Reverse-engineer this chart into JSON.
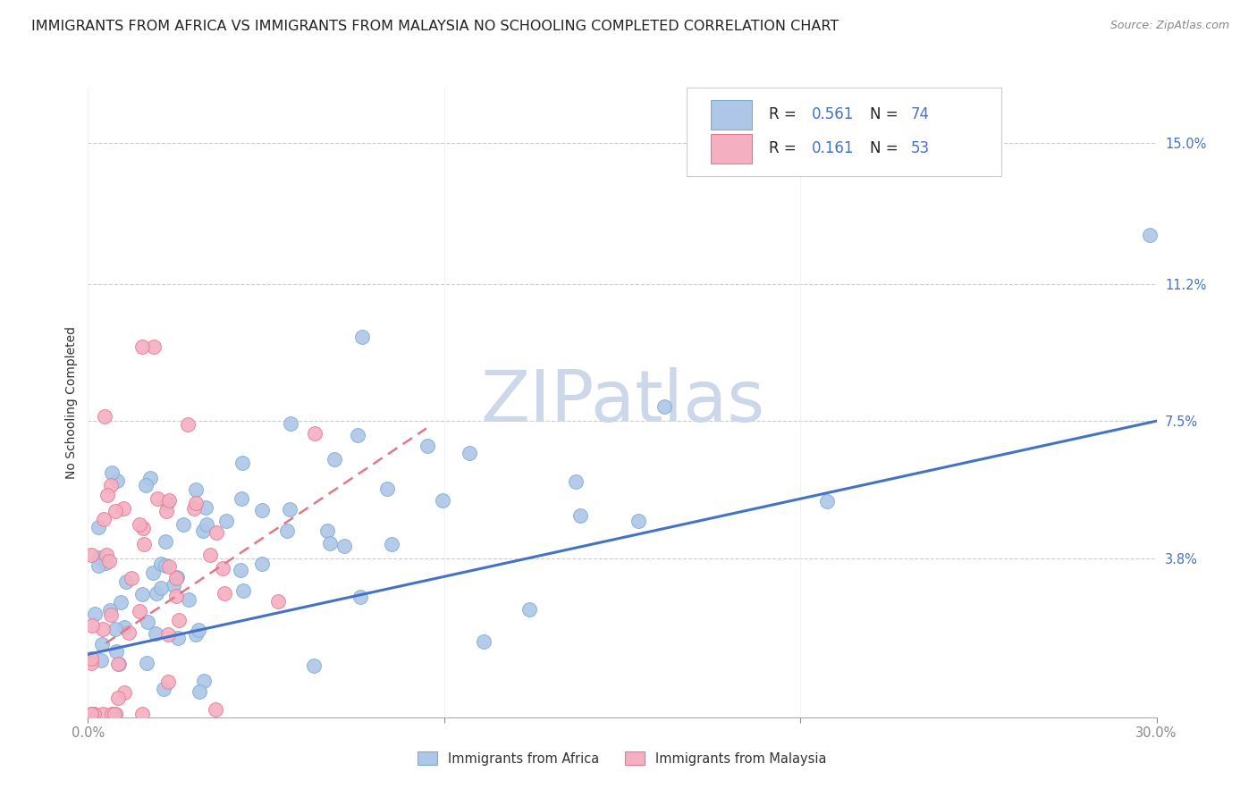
{
  "title": "IMMIGRANTS FROM AFRICA VS IMMIGRANTS FROM MALAYSIA NO SCHOOLING COMPLETED CORRELATION CHART",
  "source": "Source: ZipAtlas.com",
  "ylabel": "No Schooling Completed",
  "y_tick_labels_right": [
    "3.8%",
    "7.5%",
    "11.2%",
    "15.0%"
  ],
  "y_tick_vals": [
    0.038,
    0.075,
    0.112,
    0.15
  ],
  "xlim": [
    0.0,
    0.3
  ],
  "ylim": [
    -0.005,
    0.165
  ],
  "legend_r1_val": "0.561",
  "legend_n1_val": "74",
  "legend_r2_val": "0.161",
  "legend_n2_val": "53",
  "africa_color": "#aec6e8",
  "africa_edge": "#7aafd4",
  "africa_line_color": "#4472c4",
  "malaysia_color": "#f4b0c0",
  "malaysia_edge": "#e87898",
  "malaysia_line_color": "#e07888",
  "watermark": "ZIPatlas",
  "watermark_color": "#ccd8ea",
  "africa_trendline_x0": 0.0,
  "africa_trendline_x1": 0.3,
  "africa_trendline_y0": 0.012,
  "africa_trendline_y1": 0.075,
  "malaysia_trendline_x0": 0.005,
  "malaysia_trendline_x1": 0.095,
  "malaysia_trendline_y0": 0.015,
  "malaysia_trendline_y1": 0.073,
  "bottom_legend_labels": [
    "Immigrants from Africa",
    "Immigrants from Malaysia"
  ],
  "title_fontsize": 11.5,
  "axis_label_fontsize": 10,
  "tick_fontsize": 10.5,
  "legend_fontsize": 12,
  "africa_seed": 77,
  "malaysia_seed": 55
}
